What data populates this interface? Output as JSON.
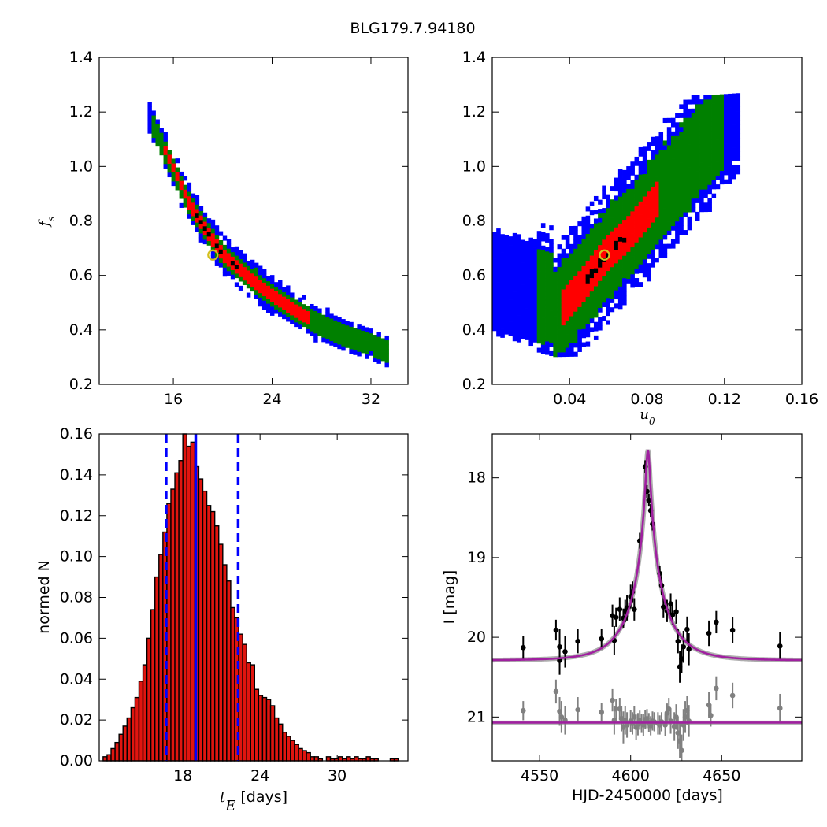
{
  "title": "BLG179.7.94180",
  "colors": {
    "sigma1": "#ff0000",
    "sigma2": "#008000",
    "sigma3": "#0000ff",
    "peak": "#000000",
    "best_fit_marker": "#d4c020",
    "hist_fill": "#e0150f",
    "hist_lines": "#0000ff",
    "model": "#a020a0",
    "obs_points": "#000000",
    "residual_points": "#808080"
  },
  "chart_data": [
    {
      "id": "fs_vs_tE",
      "type": "heatmap",
      "xlabel": "",
      "ylabel": "f_s",
      "xlim": [
        10,
        35
      ],
      "ylim": [
        0.2,
        1.4
      ],
      "xticks": [
        16,
        24,
        32
      ],
      "yticks": [
        0.2,
        0.4,
        0.6,
        0.8,
        1.0,
        1.2,
        1.4
      ],
      "confidence_levels": [
        "3-sigma (blue)",
        "2-sigma (green)",
        "1-sigma (red)",
        "peak (black)"
      ],
      "ridge": [
        [
          13.8,
          1.2
        ],
        [
          15.5,
          1.03
        ],
        [
          17.0,
          0.88
        ],
        [
          18.5,
          0.77
        ],
        [
          20.0,
          0.67
        ],
        [
          22.0,
          0.59
        ],
        [
          24.0,
          0.52
        ],
        [
          26.0,
          0.46
        ],
        [
          28.0,
          0.41
        ],
        [
          30.0,
          0.37
        ],
        [
          32.0,
          0.34
        ],
        [
          33.5,
          0.31
        ]
      ],
      "best_fit": {
        "x": 19.2,
        "y": 0.675
      }
    },
    {
      "id": "fs_vs_u0",
      "type": "heatmap",
      "xlabel": "u_0",
      "ylabel": "",
      "xlim": [
        0.0,
        0.16
      ],
      "ylim": [
        0.2,
        1.4
      ],
      "xticks": [
        0.04,
        0.08,
        0.12,
        0.16
      ],
      "yticks": [
        0.2,
        0.4,
        0.6,
        0.8,
        1.0,
        1.2,
        1.4
      ],
      "ridge": [
        [
          0.002,
          0.55
        ],
        [
          0.03,
          0.43
        ],
        [
          0.045,
          0.55
        ],
        [
          0.058,
          0.67
        ],
        [
          0.07,
          0.75
        ],
        [
          0.085,
          0.88
        ],
        [
          0.1,
          1.0
        ],
        [
          0.115,
          1.12
        ],
        [
          0.127,
          1.22
        ]
      ],
      "best_fit": {
        "x": 0.058,
        "y": 0.675
      }
    },
    {
      "id": "tE_histogram",
      "type": "bar",
      "xlabel": "t_E [days]",
      "ylabel": "normed N",
      "xlim": [
        11.5,
        35.5
      ],
      "ylim": [
        0.0,
        0.16
      ],
      "xticks": [
        18,
        24,
        30
      ],
      "yticks": [
        0.0,
        0.02,
        0.04,
        0.06,
        0.08,
        0.1,
        0.12,
        0.14,
        0.16
      ],
      "bin_start": 11.8,
      "bin_width": 0.31,
      "values": [
        0.002,
        0.003,
        0.006,
        0.009,
        0.013,
        0.017,
        0.021,
        0.026,
        0.031,
        0.039,
        0.047,
        0.06,
        0.074,
        0.09,
        0.101,
        0.112,
        0.126,
        0.133,
        0.141,
        0.147,
        0.16,
        0.154,
        0.156,
        0.144,
        0.138,
        0.132,
        0.125,
        0.122,
        0.115,
        0.106,
        0.096,
        0.088,
        0.075,
        0.07,
        0.062,
        0.057,
        0.048,
        0.047,
        0.035,
        0.032,
        0.031,
        0.03,
        0.027,
        0.021,
        0.018,
        0.014,
        0.012,
        0.01,
        0.008,
        0.006,
        0.005,
        0.004,
        0.002,
        0.002,
        0.001,
        0.0,
        0.002,
        0.001,
        0.001,
        0.002,
        0.001,
        0.002,
        0.001,
        0.002,
        0.001,
        0.001,
        0.002,
        0.001,
        0.001,
        0.0,
        0.0,
        0.0,
        0.001,
        0.001
      ],
      "median": 19.0,
      "lower": 16.7,
      "upper": 22.3
    },
    {
      "id": "light_curve",
      "type": "scatter",
      "xlabel": "HJD-2450000 [days]",
      "ylabel": "I [mag]",
      "xlim": [
        4524,
        4694
      ],
      "ylim": [
        21.55,
        17.45
      ],
      "xticks": [
        4550,
        4600,
        4650
      ],
      "yticks": [
        18,
        19,
        20,
        21
      ],
      "model": {
        "t0": 4609.5,
        "tE": 19.2,
        "u0": 0.058,
        "baseline": 20.29,
        "peak": 17.65
      },
      "residual_baseline": 21.07,
      "observations": [
        [
          4541,
          20.13,
          0.15
        ],
        [
          4559,
          19.91,
          0.13
        ],
        [
          4561,
          20.29,
          0.18
        ],
        [
          4561,
          20.12,
          0.22
        ],
        [
          4564,
          20.18,
          0.2
        ],
        [
          4571,
          20.05,
          0.15
        ],
        [
          4584,
          20.02,
          0.13
        ],
        [
          4590,
          19.73,
          0.14
        ],
        [
          4591,
          20.04,
          0.18
        ],
        [
          4592,
          19.75,
          0.12
        ],
        [
          4594,
          19.65,
          0.15
        ],
        [
          4596,
          19.76,
          0.12
        ],
        [
          4597,
          19.67,
          0.14
        ],
        [
          4598,
          19.63,
          0.16
        ],
        [
          4600,
          19.49,
          0.15
        ],
        [
          4601,
          19.43,
          0.13
        ],
        [
          4602,
          19.65,
          0.14
        ],
        [
          4605,
          18.79,
          0.1
        ],
        [
          4608,
          17.86,
          0.08
        ],
        [
          4609,
          18.17,
          0.08
        ],
        [
          4610,
          18.28,
          0.08
        ],
        [
          4611,
          18.41,
          0.08
        ],
        [
          4612,
          18.58,
          0.08
        ],
        [
          4616,
          19.2,
          0.1
        ],
        [
          4617,
          19.35,
          0.12
        ],
        [
          4618,
          19.62,
          0.14
        ],
        [
          4620,
          19.67,
          0.14
        ],
        [
          4622,
          19.58,
          0.13
        ],
        [
          4623,
          19.72,
          0.13
        ],
        [
          4625,
          19.68,
          0.15
        ],
        [
          4626,
          20.05,
          0.15
        ],
        [
          4627,
          20.37,
          0.2
        ],
        [
          4628,
          20.27,
          0.18
        ],
        [
          4629,
          20.12,
          0.2
        ],
        [
          4631,
          19.9,
          0.16
        ],
        [
          4632,
          20.15,
          0.2
        ],
        [
          4643,
          19.95,
          0.16
        ],
        [
          4647,
          19.81,
          0.14
        ],
        [
          4656,
          19.91,
          0.16
        ],
        [
          4682,
          20.11,
          0.18
        ]
      ],
      "residuals": [
        [
          4541,
          20.92,
          0.12
        ],
        [
          4559,
          20.68,
          0.15
        ],
        [
          4561,
          20.93,
          0.18
        ],
        [
          4562,
          21.0,
          0.2
        ],
        [
          4564,
          21.04,
          0.18
        ],
        [
          4571,
          20.91,
          0.16
        ],
        [
          4584,
          20.94,
          0.12
        ],
        [
          4590,
          20.79,
          0.14
        ],
        [
          4591,
          21.04,
          0.18
        ],
        [
          4592,
          20.9,
          0.13
        ],
        [
          4594,
          20.9,
          0.14
        ],
        [
          4595,
          21.02,
          0.16
        ],
        [
          4596,
          21.13,
          0.2
        ],
        [
          4597,
          21.04,
          0.18
        ],
        [
          4598,
          21.1,
          0.16
        ],
        [
          4600,
          21.05,
          0.14
        ],
        [
          4601,
          21.08,
          0.14
        ],
        [
          4602,
          21.0,
          0.14
        ],
        [
          4603,
          21.13,
          0.16
        ],
        [
          4604,
          21.09,
          0.14
        ],
        [
          4605,
          21.04,
          0.12
        ],
        [
          4606,
          21.08,
          0.12
        ],
        [
          4607,
          21.1,
          0.14
        ],
        [
          4608,
          21.03,
          0.12
        ],
        [
          4609,
          21.02,
          0.12
        ],
        [
          4610,
          21.07,
          0.12
        ],
        [
          4611,
          21.11,
          0.12
        ],
        [
          4612,
          21.05,
          0.12
        ],
        [
          4613,
          21.06,
          0.12
        ],
        [
          4615,
          21.08,
          0.14
        ],
        [
          4616,
          21.1,
          0.12
        ],
        [
          4617,
          21.06,
          0.12
        ],
        [
          4619,
          21.1,
          0.14
        ],
        [
          4620,
          20.95,
          0.12
        ],
        [
          4621,
          20.9,
          0.14
        ],
        [
          4622,
          21.05,
          0.16
        ],
        [
          4624,
          21.12,
          0.18
        ],
        [
          4625,
          21.0,
          0.16
        ],
        [
          4626,
          21.2,
          0.2
        ],
        [
          4627,
          21.3,
          0.22
        ],
        [
          4628,
          21.42,
          0.2
        ],
        [
          4629,
          21.1,
          0.2
        ],
        [
          4630,
          21.0,
          0.2
        ],
        [
          4631,
          20.92,
          0.18
        ],
        [
          4632,
          21.05,
          0.2
        ],
        [
          4643,
          20.85,
          0.16
        ],
        [
          4644,
          20.98,
          0.14
        ],
        [
          4647,
          20.64,
          0.15
        ],
        [
          4656,
          20.73,
          0.16
        ],
        [
          4682,
          20.89,
          0.18
        ]
      ]
    }
  ]
}
